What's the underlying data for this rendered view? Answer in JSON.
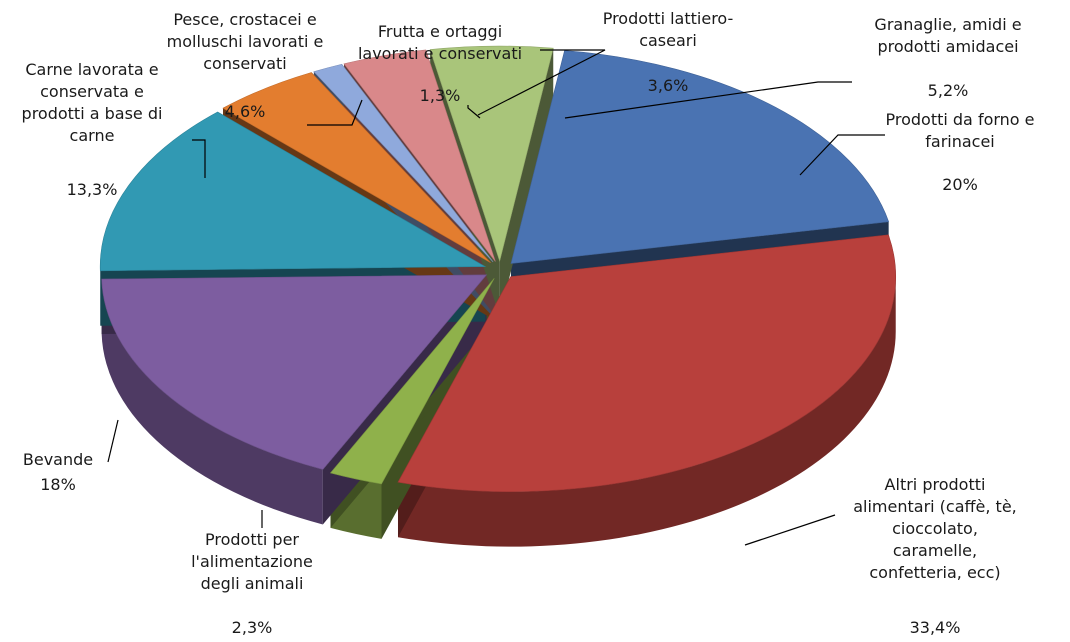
{
  "chart_data": {
    "type": "pie",
    "style": "exploded-3d",
    "title": "",
    "legend": "none",
    "unit": "%",
    "slices": [
      {
        "label": "Prodotti da forno e farinacei",
        "value": 20,
        "value_label": "20%",
        "color": "#4a73b2"
      },
      {
        "label": "Altri prodotti alimentari (caffè, tè, cioccolato, caramelle, confetteria, ecc)",
        "value": 33.4,
        "value_label": "33,4%",
        "color": "#b8403c"
      },
      {
        "label": "Prodotti per l'alimentazione degli animali",
        "value": 2.3,
        "value_label": "2,3%",
        "color": "#8fb14b"
      },
      {
        "label": "Bevande",
        "value": 18,
        "value_label": "18%",
        "color": "#7d5da0"
      },
      {
        "label": "Carne lavorata e conservata e prodotti a base di carne",
        "value": 13.3,
        "value_label": "13,3%",
        "color": "#3199b3"
      },
      {
        "label": "Pesce, crostacei e molluschi lavorati e conservati",
        "value": 4.6,
        "value_label": "4,6%",
        "color": "#e37d2f"
      },
      {
        "label": "Frutta e ortaggi lavorati e conservati",
        "value": 1.3,
        "value_label": "1,3%",
        "color": "#8fa9dc"
      },
      {
        "label": "Prodotti lattiero-caseari",
        "value": 3.6,
        "value_label": "3,6%",
        "color": "#d9888a"
      },
      {
        "label": "Granaglie, amidi e prodotti amidacei",
        "value": 5.2,
        "value_label": "5,2%",
        "color": "#a9c57a"
      }
    ]
  }
}
